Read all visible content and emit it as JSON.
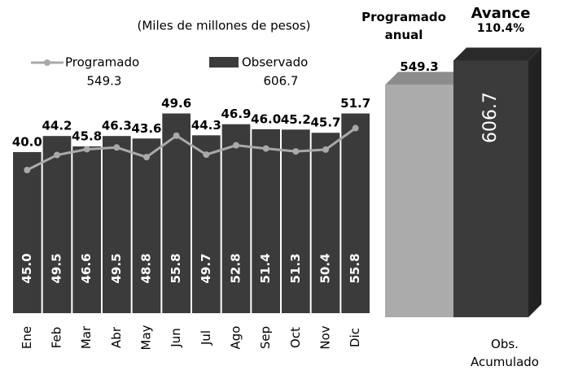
{
  "chart_data": [
    {
      "type": "bar_line",
      "subtitle": "(Miles de millones de pesos)",
      "categories": [
        "Ene",
        "Feb",
        "Mar",
        "Abr",
        "May",
        "Jun",
        "Jul",
        "Ago",
        "Sep",
        "Oct",
        "Nov",
        "Dic"
      ],
      "series": [
        {
          "name": "Programado",
          "type": "line",
          "color": "#a9a9a9",
          "total_label": "549.3",
          "values": [
            40.0,
            44.2,
            45.8,
            46.3,
            43.6,
            49.6,
            44.3,
            46.9,
            46.0,
            45.2,
            45.7,
            51.7
          ],
          "value_labels": [
            "40.0",
            "44.2",
            "45.8",
            "46.3",
            "43.6",
            "49.6",
            "44.3",
            "46.9",
            "46.0",
            "45.2",
            "45.7",
            "51.7"
          ]
        },
        {
          "name": "Observado",
          "type": "bar",
          "color": "#3b3b3b",
          "total_label": "606.7",
          "values": [
            45.0,
            49.5,
            46.6,
            49.5,
            48.8,
            55.8,
            49.7,
            52.8,
            51.4,
            51.3,
            50.4,
            55.8
          ],
          "value_labels": [
            "45.0",
            "49.5",
            "46.6",
            "49.5",
            "48.8",
            "55.8",
            "49.7",
            "52.8",
            "51.4",
            "51.3",
            "50.4",
            "55.8"
          ]
        }
      ]
    },
    {
      "type": "bar3d",
      "annotation": "Avance",
      "annotation_value": "110.4%",
      "categories": [
        "Programado anual",
        "Obs. Acumulado"
      ],
      "values": [
        549.3,
        606.7
      ],
      "value_labels": [
        "549.3",
        "606.7"
      ],
      "colors": [
        "#ababab",
        "#3b3b3b"
      ]
    }
  ]
}
